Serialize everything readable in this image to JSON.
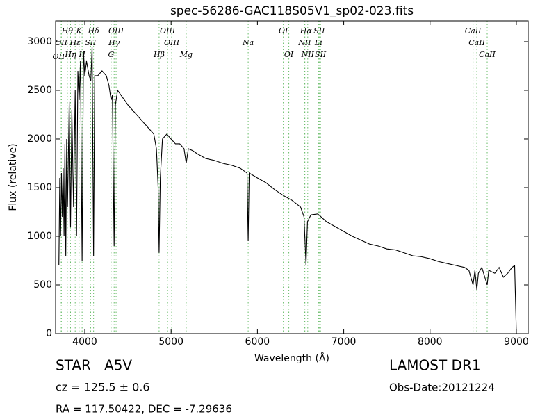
{
  "chart_data": {
    "type": "line",
    "title": "spec-56286-GAC118S05V1_sp02-023.fits",
    "x_label": "Wavelength (Å)",
    "y_label": "Flux (relative)",
    "xlim": [
      3662,
      9137
    ],
    "ylim": [
      0,
      3214
    ],
    "xticks": [
      4000,
      5000,
      6000,
      7000,
      8000,
      9000
    ],
    "yticks": [
      0,
      500,
      1000,
      1500,
      2000,
      2500,
      3000
    ],
    "color": "#000000",
    "line_color": "#66bb66",
    "x": [
      3700,
      3710,
      3720,
      3730,
      3740,
      3750,
      3760,
      3770,
      3780,
      3790,
      3800,
      3820,
      3835,
      3850,
      3870,
      3889,
      3905,
      3920,
      3935,
      3950,
      3969,
      3985,
      4000,
      4020,
      4050,
      4070,
      4085,
      4102,
      4115,
      4150,
      4200,
      4250,
      4280,
      4305,
      4320,
      4340,
      4355,
      4380,
      4420,
      4460,
      4500,
      4550,
      4600,
      4650,
      4700,
      4750,
      4800,
      4830,
      4850,
      4861,
      4875,
      4900,
      4950,
      5000,
      5050,
      5100,
      5150,
      5175,
      5200,
      5250,
      5300,
      5400,
      5500,
      5600,
      5700,
      5800,
      5880,
      5893,
      5905,
      6000,
      6100,
      6200,
      6300,
      6400,
      6500,
      6540,
      6563,
      6580,
      6620,
      6700,
      6800,
      6900,
      7000,
      7100,
      7200,
      7300,
      7400,
      7500,
      7600,
      7700,
      7800,
      7900,
      8000,
      8100,
      8200,
      8300,
      8400,
      8450,
      8498,
      8520,
      8542,
      8560,
      8600,
      8662,
      8680,
      8750,
      8800,
      8850,
      8900,
      8950,
      8980,
      9000
    ],
    "values": [
      700,
      1600,
      1000,
      1650,
      1200,
      1700,
      1000,
      1950,
      800,
      2000,
      1300,
      2380,
      1100,
      2300,
      1300,
      2500,
      1000,
      2700,
      2400,
      2800,
      750,
      2900,
      2650,
      2800,
      2650,
      2600,
      2950,
      800,
      2650,
      2650,
      2700,
      2650,
      2550,
      2400,
      2450,
      900,
      2350,
      2500,
      2450,
      2400,
      2350,
      2300,
      2250,
      2200,
      2150,
      2100,
      2050,
      1900,
      1500,
      830,
      1600,
      2000,
      2050,
      2000,
      1950,
      1950,
      1900,
      1750,
      1900,
      1880,
      1850,
      1800,
      1780,
      1750,
      1730,
      1700,
      1650,
      950,
      1650,
      1600,
      1550,
      1480,
      1420,
      1370,
      1300,
      1200,
      700,
      1150,
      1220,
      1230,
      1150,
      1100,
      1050,
      1000,
      960,
      920,
      900,
      870,
      860,
      830,
      800,
      790,
      770,
      740,
      720,
      700,
      680,
      650,
      500,
      650,
      450,
      620,
      680,
      500,
      650,
      620,
      680,
      580,
      620,
      680,
      700,
      0
    ],
    "annotation_rows": [
      [
        {
          "label": "Hθ",
          "wavelength": 3798
        },
        {
          "label": "K",
          "wavelength": 3934
        },
        {
          "label": "Hδ",
          "wavelength": 4102
        },
        {
          "label": "OIII",
          "wavelength": 4363
        },
        {
          "label": "OIII",
          "wavelength": 4959
        },
        {
          "label": "OI",
          "wavelength": 6300
        },
        {
          "label": "Hα",
          "wavelength": 6563
        },
        {
          "label": "SII",
          "wavelength": 6716
        },
        {
          "label": "CaII",
          "wavelength": 8498
        }
      ],
      [
        {
          "label": "OII",
          "wavelength": 3727
        },
        {
          "label": "Hε",
          "wavelength": 3889
        },
        {
          "label": "SII",
          "wavelength": 4068
        },
        {
          "label": "Hγ",
          "wavelength": 4340
        },
        {
          "label": "OIII",
          "wavelength": 5007
        },
        {
          "label": "Na",
          "wavelength": 5893
        },
        {
          "label": "NII",
          "wavelength": 6548
        },
        {
          "label": "Li",
          "wavelength": 6708
        },
        {
          "label": "CaII",
          "wavelength": 8542
        }
      ],
      [
        {
          "label": "Hη",
          "wavelength": 3835
        },
        {
          "label": "H",
          "wavelength": 3969
        },
        {
          "label": "G",
          "wavelength": 4305
        },
        {
          "label": "Hβ",
          "wavelength": 4861
        },
        {
          "label": "Mg",
          "wavelength": 5175
        },
        {
          "label": "OI",
          "wavelength": 6364
        },
        {
          "label": "NII",
          "wavelength": 6583
        },
        {
          "label": "SII",
          "wavelength": 6731
        },
        {
          "label": "CaII",
          "wavelength": 8662
        }
      ],
      [
        {
          "label": "OII",
          "wavelength": 3729
        }
      ]
    ],
    "object_class": "STAR   A5V",
    "redshift": "cz = 125.5 ± 0.6",
    "coordinates": "RA = 117.50422, DEC = -7.29636",
    "survey": "LAMOST DR1",
    "obs_date": "Obs-Date:20121224"
  }
}
